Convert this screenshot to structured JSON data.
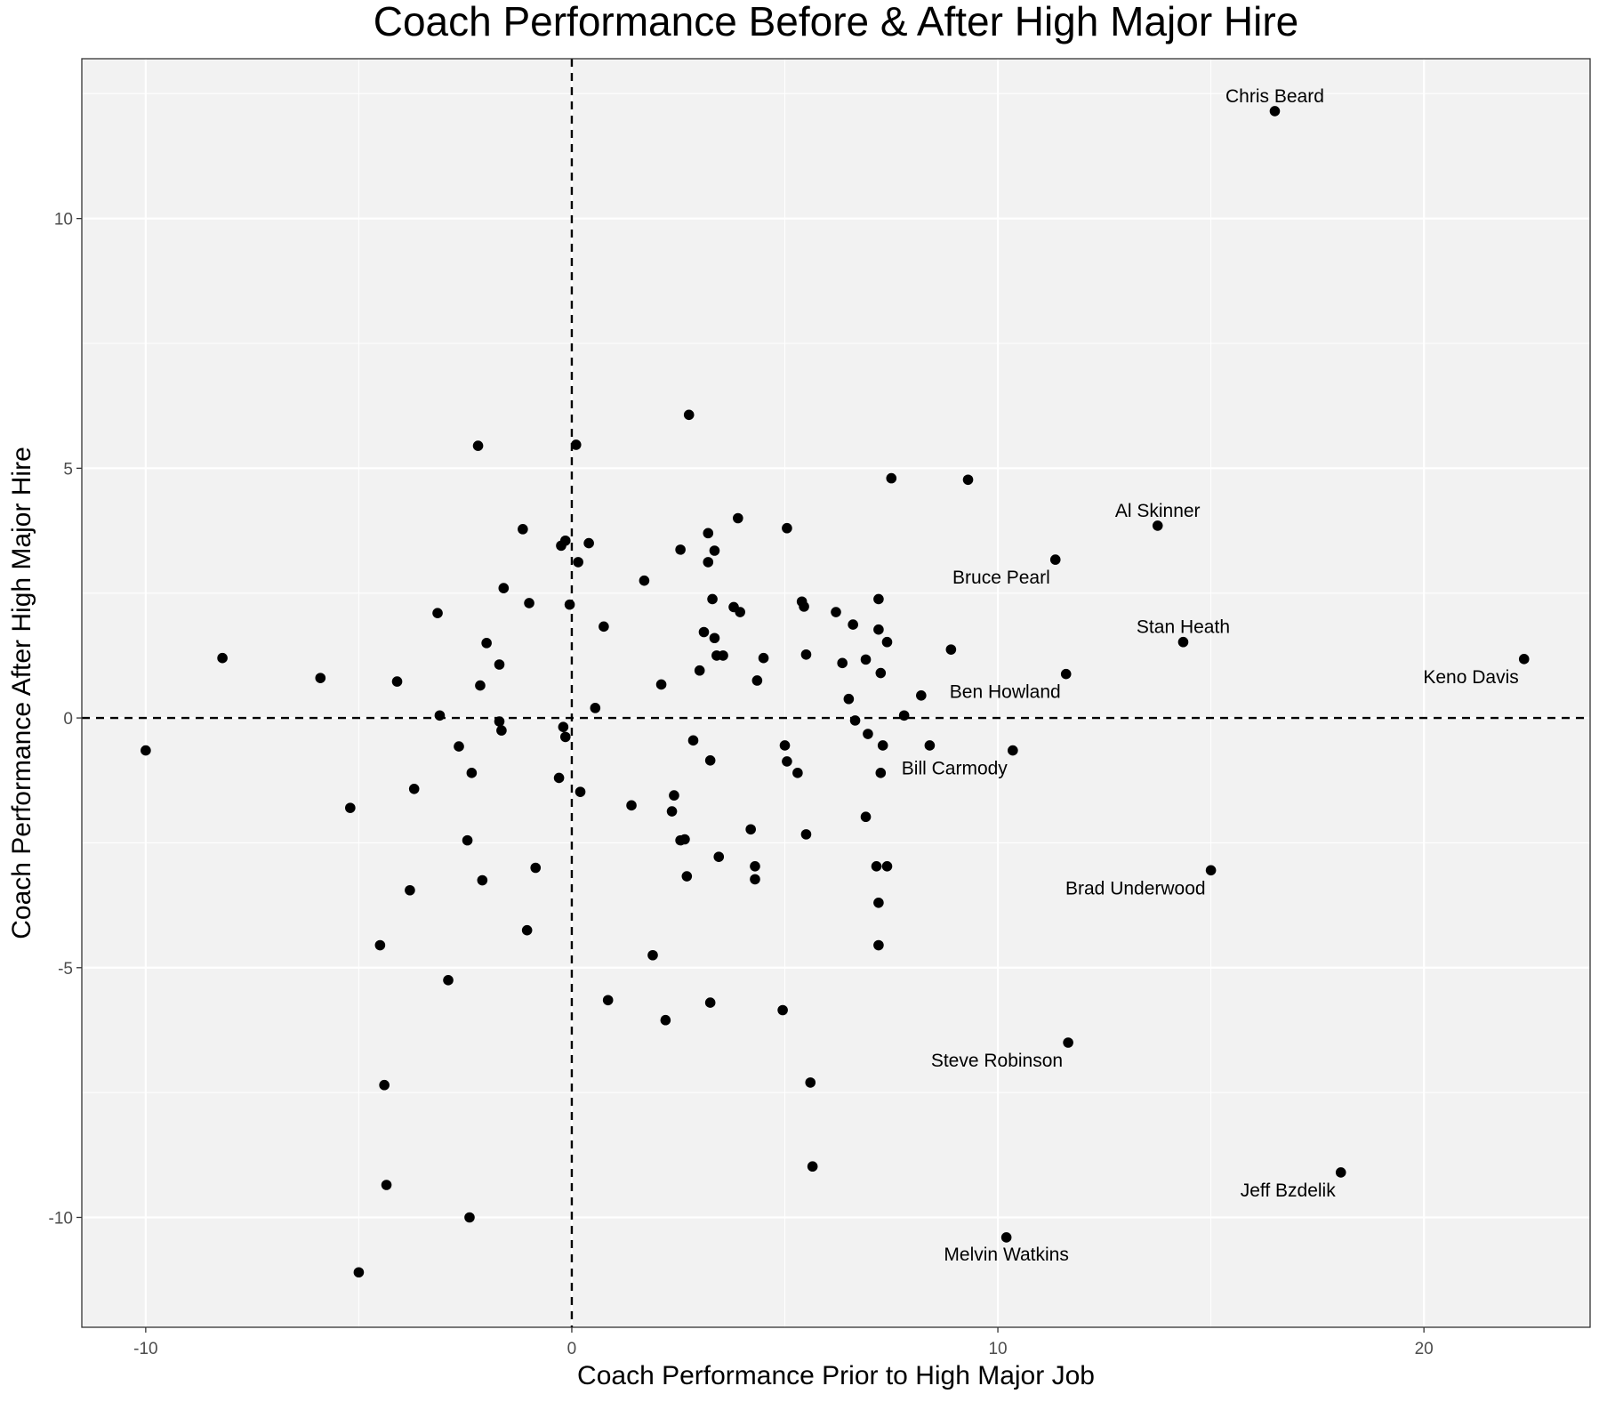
{
  "chart_data": {
    "type": "scatter",
    "title": "Coach Performance Before & After High Major Hire",
    "xlabel": "Coach Performance Prior to High Major Job",
    "ylabel": "Coach Performance After High Major Hire",
    "xlim": [
      -11.5,
      23.9
    ],
    "ylim": [
      -12.2,
      13.2
    ],
    "xticks": [
      -10,
      0,
      10,
      20
    ],
    "yticks": [
      -10,
      -5,
      0,
      5,
      10
    ],
    "grid": true,
    "reference_lines": {
      "x": 0,
      "y": 0,
      "style": "dashed"
    },
    "colors": {
      "panel": "#f2f2f2",
      "grid": "#ffffff",
      "point": "#000000",
      "tick_text": "#4d4d4d"
    },
    "points": [
      {
        "x": -10.0,
        "y": -0.65
      },
      {
        "x": -8.2,
        "y": 1.2
      },
      {
        "x": -5.9,
        "y": 0.8
      },
      {
        "x": -5.2,
        "y": -1.8
      },
      {
        "x": -5.0,
        "y": -11.1
      },
      {
        "x": -4.5,
        "y": -4.55
      },
      {
        "x": -4.4,
        "y": -7.35
      },
      {
        "x": -4.35,
        "y": -9.35
      },
      {
        "x": -4.1,
        "y": 0.73
      },
      {
        "x": -3.8,
        "y": -3.45
      },
      {
        "x": -3.7,
        "y": -1.42
      },
      {
        "x": -3.15,
        "y": 2.1
      },
      {
        "x": -3.1,
        "y": 0.05
      },
      {
        "x": -2.9,
        "y": -5.25
      },
      {
        "x": -2.65,
        "y": -0.57
      },
      {
        "x": -2.45,
        "y": -2.45
      },
      {
        "x": -2.4,
        "y": -10.0
      },
      {
        "x": -2.35,
        "y": -1.1
      },
      {
        "x": -2.2,
        "y": 5.45
      },
      {
        "x": -2.15,
        "y": 0.65
      },
      {
        "x": -2.1,
        "y": -3.25
      },
      {
        "x": -2.0,
        "y": 1.5
      },
      {
        "x": -1.7,
        "y": 1.07
      },
      {
        "x": -1.7,
        "y": -0.07
      },
      {
        "x": -1.65,
        "y": -0.25
      },
      {
        "x": -1.6,
        "y": 2.6
      },
      {
        "x": -1.15,
        "y": 3.78
      },
      {
        "x": -1.0,
        "y": 2.3
      },
      {
        "x": -1.05,
        "y": -4.25
      },
      {
        "x": -0.85,
        "y": -3.0
      },
      {
        "x": -0.3,
        "y": -1.2
      },
      {
        "x": -0.25,
        "y": 3.45
      },
      {
        "x": -0.2,
        "y": -0.18
      },
      {
        "x": -0.15,
        "y": 3.55
      },
      {
        "x": -0.15,
        "y": -0.38
      },
      {
        "x": -0.05,
        "y": 2.27
      },
      {
        "x": 0.1,
        "y": 5.47
      },
      {
        "x": 0.15,
        "y": 3.12
      },
      {
        "x": 0.2,
        "y": -1.48
      },
      {
        "x": 0.4,
        "y": 3.5
      },
      {
        "x": 0.55,
        "y": 0.2
      },
      {
        "x": 0.75,
        "y": 1.83
      },
      {
        "x": 0.85,
        "y": -5.65
      },
      {
        "x": 1.4,
        "y": -1.75
      },
      {
        "x": 1.7,
        "y": 2.75
      },
      {
        "x": 1.9,
        "y": -4.75
      },
      {
        "x": 2.1,
        "y": 0.67
      },
      {
        "x": 2.2,
        "y": -6.05
      },
      {
        "x": 2.35,
        "y": -1.87
      },
      {
        "x": 2.4,
        "y": -1.55
      },
      {
        "x": 2.55,
        "y": 3.37
      },
      {
        "x": 2.55,
        "y": -2.45
      },
      {
        "x": 2.65,
        "y": -2.43
      },
      {
        "x": 2.7,
        "y": -3.17
      },
      {
        "x": 2.75,
        "y": 6.07
      },
      {
        "x": 2.85,
        "y": -0.45
      },
      {
        "x": 3.0,
        "y": 0.95
      },
      {
        "x": 3.1,
        "y": 1.72
      },
      {
        "x": 3.2,
        "y": 3.7
      },
      {
        "x": 3.2,
        "y": 3.12
      },
      {
        "x": 3.25,
        "y": -0.85
      },
      {
        "x": 3.25,
        "y": -5.7
      },
      {
        "x": 3.3,
        "y": 2.38
      },
      {
        "x": 3.35,
        "y": 1.6
      },
      {
        "x": 3.35,
        "y": 3.35
      },
      {
        "x": 3.4,
        "y": 1.25
      },
      {
        "x": 3.45,
        "y": -2.78
      },
      {
        "x": 3.55,
        "y": 1.25
      },
      {
        "x": 3.8,
        "y": 2.22
      },
      {
        "x": 3.9,
        "y": 4.0
      },
      {
        "x": 3.95,
        "y": 2.12
      },
      {
        "x": 4.2,
        "y": -2.23
      },
      {
        "x": 4.3,
        "y": -2.97
      },
      {
        "x": 4.3,
        "y": -3.23
      },
      {
        "x": 4.35,
        "y": 0.75
      },
      {
        "x": 4.5,
        "y": 1.2
      },
      {
        "x": 4.95,
        "y": -5.85
      },
      {
        "x": 5.0,
        "y": -0.55
      },
      {
        "x": 5.05,
        "y": -0.87
      },
      {
        "x": 5.05,
        "y": 3.8
      },
      {
        "x": 5.3,
        "y": -1.1
      },
      {
        "x": 5.4,
        "y": 2.33
      },
      {
        "x": 5.45,
        "y": 2.23
      },
      {
        "x": 5.5,
        "y": -2.33
      },
      {
        "x": 5.5,
        "y": 1.27
      },
      {
        "x": 5.6,
        "y": -7.3
      },
      {
        "x": 5.65,
        "y": -8.98
      },
      {
        "x": 6.2,
        "y": 2.12
      },
      {
        "x": 6.35,
        "y": 1.1
      },
      {
        "x": 6.5,
        "y": 0.38
      },
      {
        "x": 6.6,
        "y": 1.87
      },
      {
        "x": 6.65,
        "y": -0.05
      },
      {
        "x": 6.9,
        "y": 1.17
      },
      {
        "x": 6.9,
        "y": -1.98
      },
      {
        "x": 6.95,
        "y": -0.32
      },
      {
        "x": 7.15,
        "y": -2.97
      },
      {
        "x": 7.2,
        "y": 1.77
      },
      {
        "x": 7.2,
        "y": 2.38
      },
      {
        "x": 7.2,
        "y": -3.7
      },
      {
        "x": 7.2,
        "y": -4.55
      },
      {
        "x": 7.25,
        "y": 0.9
      },
      {
        "x": 7.25,
        "y": -1.1
      },
      {
        "x": 7.3,
        "y": -0.55
      },
      {
        "x": 7.4,
        "y": 1.52
      },
      {
        "x": 7.4,
        "y": -2.97
      },
      {
        "x": 7.5,
        "y": 4.8
      },
      {
        "x": 7.8,
        "y": 0.05
      },
      {
        "x": 8.2,
        "y": 0.45
      },
      {
        "x": 8.4,
        "y": -0.55
      },
      {
        "x": 8.9,
        "y": 1.37
      },
      {
        "x": 9.3,
        "y": 4.77
      },
      {
        "x": 10.2,
        "y": -10.4,
        "label": "Melvin Watkins",
        "label_pos": "below"
      },
      {
        "x": 10.35,
        "y": -0.65,
        "label": "Bill Carmody",
        "label_pos": "below-left"
      },
      {
        "x": 11.35,
        "y": 3.17,
        "label": "Bruce Pearl",
        "label_pos": "below-left"
      },
      {
        "x": 11.6,
        "y": 0.88,
        "label": "Ben Howland",
        "label_pos": "below-left"
      },
      {
        "x": 11.65,
        "y": -6.5,
        "label": "Steve Robinson",
        "label_pos": "below-left"
      },
      {
        "x": 13.75,
        "y": 3.85,
        "label": "Al Skinner",
        "label_pos": "above"
      },
      {
        "x": 14.35,
        "y": 1.52,
        "label": "Stan Heath",
        "label_pos": "above"
      },
      {
        "x": 15.0,
        "y": -3.05,
        "label": "Brad Underwood",
        "label_pos": "below-left"
      },
      {
        "x": 16.5,
        "y": 12.15,
        "label": "Chris Beard",
        "label_pos": "above"
      },
      {
        "x": 18.05,
        "y": -9.1,
        "label": "Jeff Bzdelik",
        "label_pos": "below-left"
      },
      {
        "x": 22.35,
        "y": 1.18,
        "label": "Keno Davis",
        "label_pos": "below-left"
      }
    ]
  }
}
